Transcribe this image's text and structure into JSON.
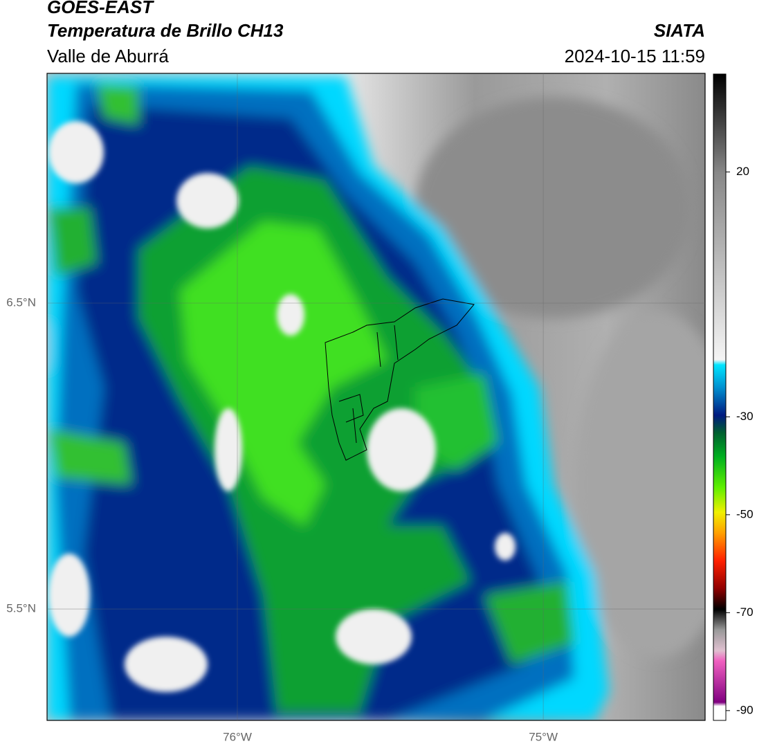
{
  "header": {
    "title": "GOES-EAST",
    "subtitle": "Temperatura de Brillo CH13",
    "region": "Valle de Aburrá",
    "source": "SIATA",
    "datetime": "2024-10-15 11:59"
  },
  "map": {
    "xlim": [
      -76.622,
      -74.471
    ],
    "ylim": [
      5.136,
      7.251
    ],
    "xticks": [
      {
        "value": -76,
        "label": "76°W"
      },
      {
        "value": -75,
        "label": "75°W"
      }
    ],
    "yticks": [
      {
        "value": 6.5,
        "label": "6.5°N"
      },
      {
        "value": 5.5,
        "label": "5.5°N"
      }
    ]
  },
  "colorbar": {
    "lim": [
      -92,
      40
    ],
    "ticks": [
      20,
      -30,
      -50,
      -70,
      -90
    ]
  }
}
